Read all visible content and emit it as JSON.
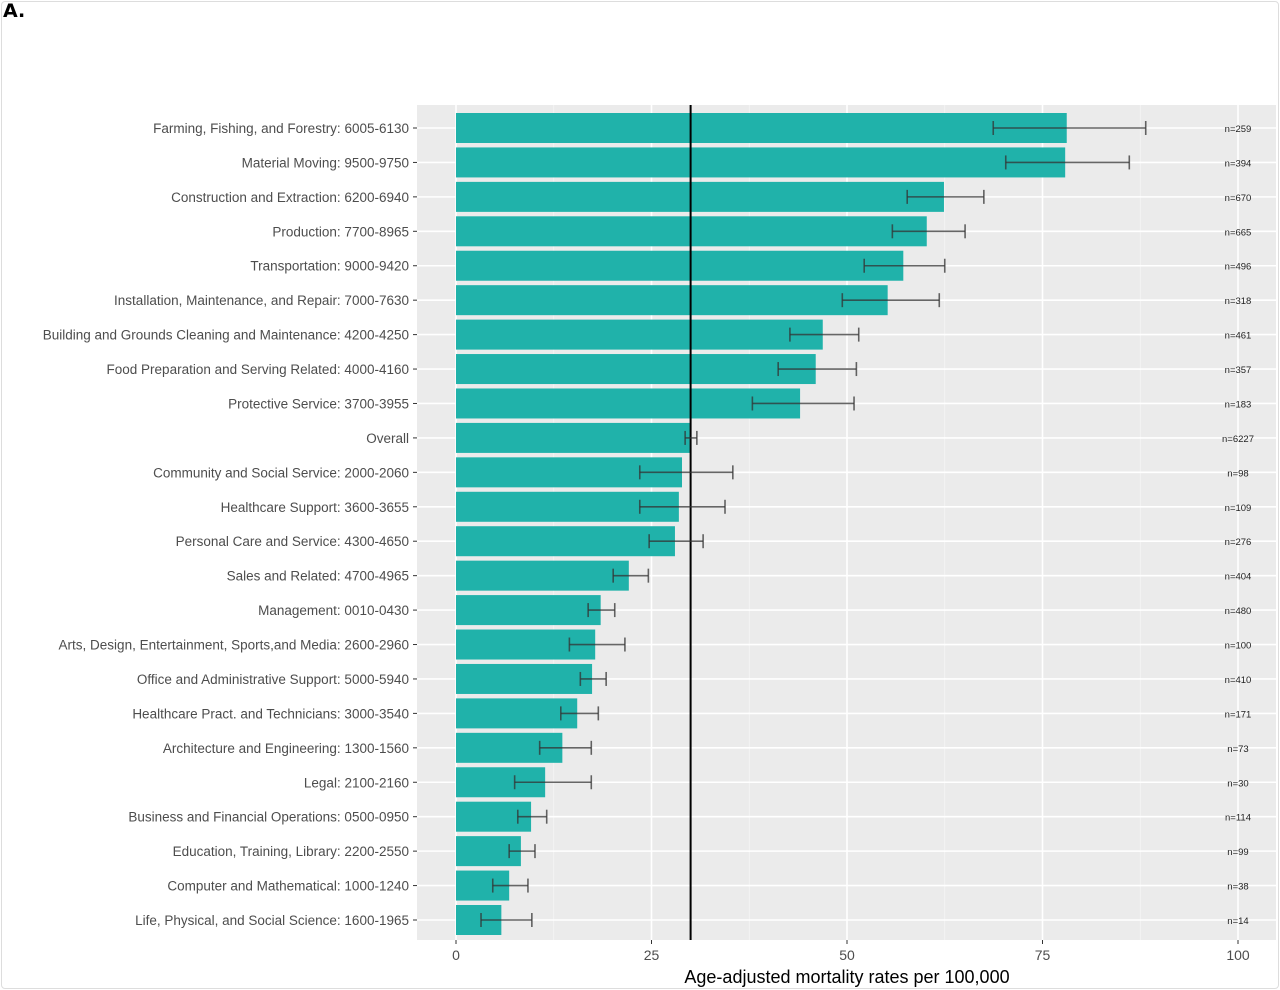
{
  "panel_label": "A.",
  "chart_data": {
    "type": "bar",
    "orientation": "horizontal",
    "title": "",
    "xlabel": "Age-adjusted mortality rates per 100,000",
    "ylabel": "",
    "xlim": [
      0,
      100
    ],
    "xticks": [
      0,
      25,
      50,
      75,
      100
    ],
    "xtick_labels": [
      "0",
      "25",
      "50",
      "75",
      "100"
    ],
    "reference_line": 30,
    "grid": true,
    "bar_color": "#20b2aa",
    "categories": [
      "Farming, Fishing, and Forestry: 6005-6130",
      "Material Moving: 9500-9750",
      "Construction and Extraction: 6200-6940",
      "Production: 7700-8965",
      "Transportation: 9000-9420",
      "Installation, Maintenance, and Repair: 7000-7630",
      "Building and Grounds Cleaning and Maintenance: 4200-4250",
      "Food Preparation and Serving Related: 4000-4160",
      "Protective Service: 3700-3955",
      "Overall",
      "Community and Social Service: 2000-2060",
      "Healthcare Support: 3600-3655",
      "Personal Care and Service: 4300-4650",
      "Sales and Related: 4700-4965",
      "Management: 0010-0430",
      "Arts, Design, Entertainment, Sports,and Media: 2600-2960",
      "Office and Administrative Support: 5000-5940",
      "Healthcare Pract. and Technicians: 3000-3540",
      "Architecture and Engineering: 1300-1560",
      "Legal: 2100-2160",
      "Business and Financial Operations: 0500-0950",
      "Education, Training, Library: 2200-2550",
      "Computer and Mathematical: 1000-1240",
      "Life, Physical, and Social Science: 1600-1965"
    ],
    "values": [
      78.1,
      77.9,
      62.4,
      60.2,
      57.2,
      55.2,
      46.9,
      46.0,
      44.0,
      29.9,
      28.9,
      28.5,
      28.0,
      22.1,
      18.5,
      17.8,
      17.4,
      15.5,
      13.6,
      11.4,
      9.6,
      8.3,
      6.8,
      5.8
    ],
    "ci_low": [
      68.7,
      70.3,
      57.7,
      55.8,
      52.2,
      49.4,
      42.7,
      41.2,
      37.9,
      29.3,
      23.5,
      23.5,
      24.7,
      20.1,
      16.9,
      14.5,
      15.9,
      13.4,
      10.7,
      7.5,
      7.9,
      6.8,
      4.7,
      3.2
    ],
    "ci_high": [
      88.2,
      86.1,
      67.5,
      65.1,
      62.5,
      61.8,
      51.5,
      51.2,
      50.9,
      30.8,
      35.4,
      34.4,
      31.6,
      24.6,
      20.3,
      21.6,
      19.2,
      18.2,
      17.3,
      17.3,
      11.6,
      10.1,
      9.2,
      9.7
    ],
    "n_labels": [
      "n=259",
      "n=394",
      "n=670",
      "n=665",
      "n=496",
      "n=318",
      "n=461",
      "n=357",
      "n=183",
      "n=6227",
      "n=98",
      "n=109",
      "n=276",
      "n=404",
      "n=480",
      "n=100",
      "n=410",
      "n=171",
      "n=73",
      "n=30",
      "n=114",
      "n=99",
      "n=38",
      "n=14"
    ]
  }
}
